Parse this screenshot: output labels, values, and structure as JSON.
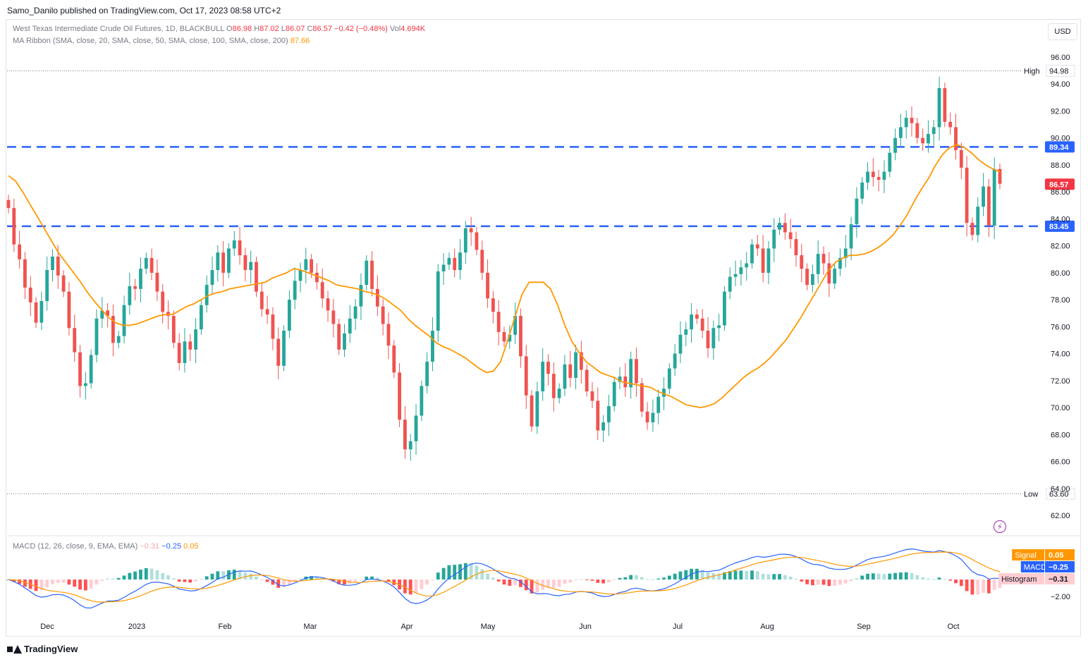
{
  "header": {
    "published": "Samo_Danilo published on TradingView.com, Oct 17, 2023 08:58 UTC+2"
  },
  "legend": {
    "symbol": "West Texas Intermediate Crude Oil Futures, 1D, BLACKBULL",
    "o_label": "O",
    "o": "86.98",
    "h_label": "H",
    "h": "87.02",
    "l_label": "L",
    "l": "86.07",
    "c_label": "C",
    "c": "86.57",
    "change": "−0.42 (−0.48%)",
    "vol_label": "Vol",
    "vol": "4.694K",
    "ma_title": "MA Ribbon (SMA, close, 20, SMA, close, 50, SMA, close, 100, SMA, close, 200)",
    "ma_value": "87.66",
    "macd_title": "MACD (12, 26, close, 9, EMA, EMA)",
    "macd_hist": "−0.31",
    "macd_macd": "−0.25",
    "macd_signal": "0.05"
  },
  "currency": "USD",
  "footer": {
    "brand": "TradingView"
  },
  "colors": {
    "up": "#26a69a",
    "down": "#ef5350",
    "ma": "#ff9800",
    "level": "#2962ff",
    "macd": "#2962ff",
    "signal": "#ff9800"
  },
  "icons": [
    "lightning-icon",
    "tradingview-logo-icon"
  ],
  "chart_data": {
    "type": "candlestick",
    "ylim": [
      61,
      97
    ],
    "y_ticks": [
      "96.00",
      "94.00",
      "92.00",
      "90.00",
      "88.00",
      "86.00",
      "84.00",
      "82.00",
      "80.00",
      "78.00",
      "76.00",
      "74.00",
      "72.00",
      "70.00",
      "68.00",
      "66.00",
      "64.00",
      "62.00"
    ],
    "x_labels": [
      "Dec",
      "2023",
      "Feb",
      "Mar",
      "Apr",
      "May",
      "Jun",
      "Jul",
      "Aug",
      "Sep",
      "Oct"
    ],
    "levels": [
      {
        "value": 89.34,
        "label": "89.34"
      },
      {
        "value": 83.45,
        "label": "83.45"
      }
    ],
    "high": {
      "value": 94.98,
      "label": "High",
      "text": "94.98"
    },
    "low": {
      "value": 63.6,
      "label": "Low",
      "text": "63.60"
    },
    "last_price": {
      "value": 86.57,
      "text": "86.57"
    },
    "closes": [
      84.8,
      82.1,
      81.0,
      78.9,
      77.8,
      76.3,
      77.9,
      80.2,
      81.2,
      79.8,
      78.6,
      75.9,
      74.1,
      71.6,
      71.8,
      73.9,
      76.6,
      77.2,
      76.8,
      74.8,
      75.3,
      77.6,
      79.0,
      78.8,
      80.3,
      81.1,
      80.0,
      78.6,
      77.1,
      76.8,
      74.8,
      73.3,
      74.9,
      74.3,
      75.8,
      77.6,
      79.1,
      80.2,
      81.5,
      80.0,
      81.8,
      82.4,
      81.3,
      80.2,
      80.8,
      78.6,
      77.3,
      76.9,
      75.1,
      73.1,
      75.7,
      78.0,
      79.4,
      80.2,
      81.0,
      80.0,
      79.3,
      78.1,
      77.2,
      76.2,
      74.3,
      75.5,
      76.6,
      77.5,
      79.1,
      80.9,
      78.8,
      77.5,
      76.2,
      74.6,
      72.6,
      69.1,
      66.9,
      67.5,
      69.4,
      71.6,
      73.4,
      75.7,
      80.1,
      80.6,
      81.1,
      80.2,
      81.5,
      83.3,
      83.0,
      81.7,
      80.0,
      78.1,
      77.1,
      75.6,
      74.9,
      75.4,
      76.8,
      73.8,
      70.9,
      68.6,
      71.2,
      73.4,
      72.5,
      70.7,
      71.4,
      73.2,
      72.2,
      74.1,
      72.8,
      71.2,
      70.5,
      68.3,
      68.9,
      70.1,
      71.9,
      72.3,
      71.5,
      73.6,
      71.8,
      69.7,
      68.9,
      69.6,
      70.8,
      71.4,
      72.9,
      74.0,
      75.4,
      75.8,
      76.9,
      76.6,
      75.7,
      74.4,
      75.9,
      76.1,
      78.6,
      79.7,
      79.9,
      80.4,
      80.7,
      82.1,
      81.8,
      80.0,
      81.8,
      83.2,
      83.7,
      83.0,
      82.5,
      81.3,
      80.3,
      79.1,
      79.9,
      81.4,
      80.7,
      79.2,
      80.3,
      81.1,
      81.8,
      83.6,
      85.5,
      86.7,
      87.5,
      87.1,
      86.9,
      87.5,
      88.9,
      90.0,
      90.8,
      91.5,
      91.1,
      90.0,
      89.6,
      90.3,
      90.8,
      93.7,
      91.2,
      90.8,
      89.1,
      87.8,
      83.7,
      82.8,
      84.9,
      86.4,
      83.5,
      87.7,
      86.6
    ],
    "ma20": [
      87.2,
      86.8,
      86.0,
      85.1,
      84.2,
      83.3,
      82.4,
      81.5,
      80.8,
      80.1,
      79.4,
      78.6,
      77.9,
      77.3,
      76.7,
      76.3,
      76.1,
      76.1,
      76.2,
      76.4,
      76.6,
      76.8,
      76.9,
      76.9,
      77.2,
      77.5,
      77.7,
      78.0,
      78.3,
      78.5,
      78.6,
      78.8,
      78.9,
      79.0,
      79.1,
      79.2,
      79.3,
      79.6,
      79.8,
      80.0,
      80.3,
      80.2,
      80.0,
      79.8,
      79.6,
      79.4,
      79.1,
      79.0,
      78.9,
      78.8,
      78.6,
      78.5,
      78.3,
      78.0,
      77.6,
      77.2,
      76.6,
      76.1,
      75.7,
      75.3,
      74.8,
      74.5,
      74.3,
      74.0,
      73.7,
      73.3,
      72.9,
      72.6,
      72.7,
      73.4,
      75.0,
      76.7,
      78.4,
      79.3,
      79.3,
      79.3,
      78.8,
      77.6,
      76.1,
      74.9,
      74.1,
      73.4,
      73.0,
      72.6,
      72.4,
      72.2,
      71.9,
      71.8,
      71.7,
      71.6,
      71.5,
      71.2,
      71.0,
      70.8,
      70.5,
      70.2,
      70.1,
      70.0,
      70.1,
      70.3,
      70.7,
      71.2,
      71.7,
      72.2,
      72.6,
      72.9,
      73.3,
      73.8,
      74.4,
      75.0,
      75.8,
      76.6,
      77.5,
      78.4,
      79.3,
      80.2,
      80.8,
      81.1,
      81.3,
      81.3,
      81.4,
      81.6,
      81.9,
      82.3,
      82.8,
      83.5,
      84.3,
      85.3,
      86.2,
      87.0,
      88.0,
      88.8,
      89.3,
      89.5,
      89.3,
      88.9,
      88.4,
      88.0,
      87.7,
      87.5
    ]
  }
}
